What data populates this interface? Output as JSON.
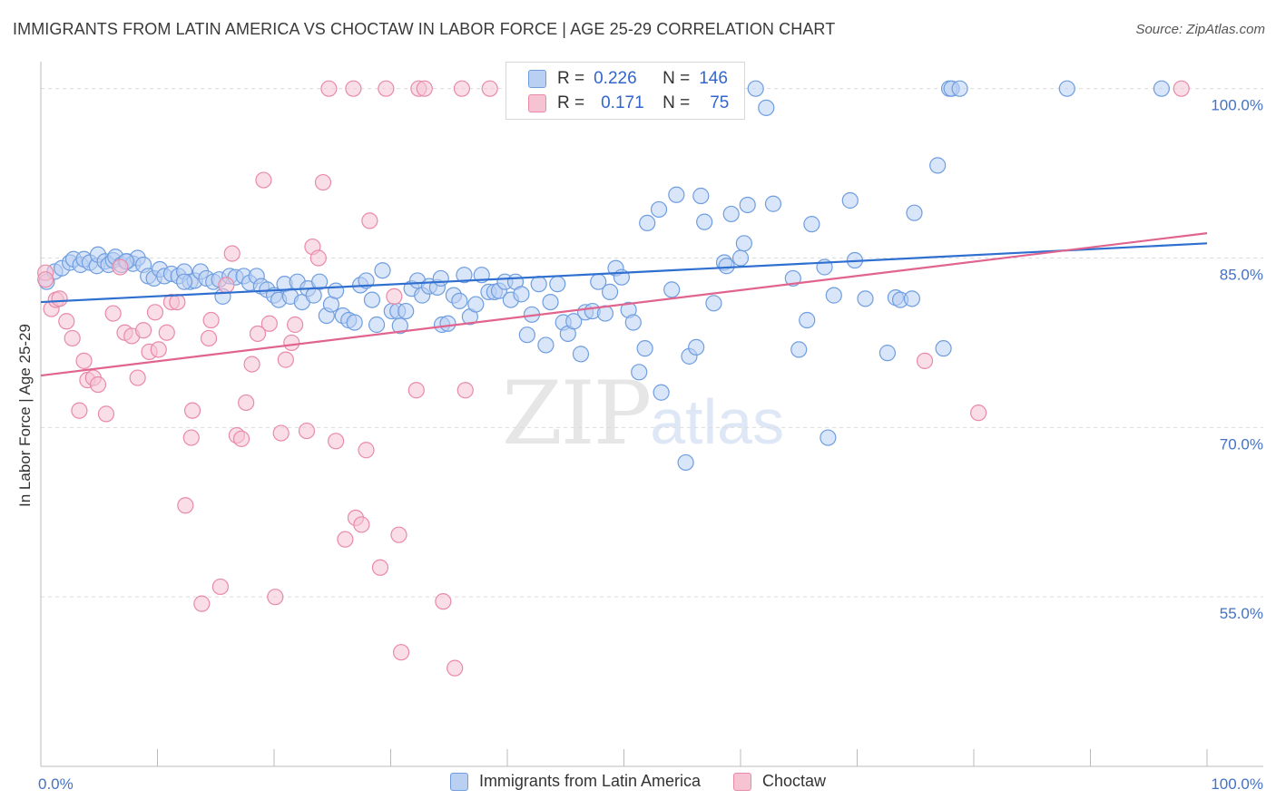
{
  "title": "IMMIGRANTS FROM LATIN AMERICA VS CHOCTAW IN LABOR FORCE | AGE 25-29 CORRELATION CHART",
  "source": "Source: ZipAtlas.com",
  "watermark": {
    "zip": "ZIP",
    "atlas": "atlas"
  },
  "legend_top": {
    "rows": [
      {
        "r_label": "R =",
        "r_value": "0.226",
        "n_label": "N =",
        "n_value": "146"
      },
      {
        "r_label": "R =",
        "r_value": "0.171",
        "n_label": "N =",
        "n_value": "75"
      }
    ]
  },
  "chart_data": {
    "type": "scatter",
    "title": "IMMIGRANTS FROM LATIN AMERICA VS CHOCTAW IN LABOR FORCE | AGE 25-29 CORRELATION CHART",
    "xlabel": "",
    "ylabel": "In Labor Force | Age 25-29",
    "xlim": [
      0,
      100
    ],
    "ylim": [
      40,
      101.5
    ],
    "x_tick_labels": [
      "0.0%",
      "100.0%"
    ],
    "y_ticks": [
      55,
      70,
      85,
      100
    ],
    "y_tick_labels": [
      "55.0%",
      "70.0%",
      "85.0%",
      "100.0%"
    ],
    "grid": true,
    "legend_position": "bottom",
    "series": [
      {
        "name": "Immigrants from Latin America",
        "color": "#6f9ee0",
        "fill": "#b9d0f2",
        "R": 0.226,
        "N": 146,
        "trend": {
          "x": [
            0,
            100
          ],
          "y": [
            81.1,
            86.3
          ]
        },
        "points": [
          [
            0.5,
            82.9
          ],
          [
            1.2,
            83.8
          ],
          [
            1.8,
            84.1
          ],
          [
            2.5,
            84.6
          ],
          [
            2.8,
            84.9
          ],
          [
            3.4,
            84.4
          ],
          [
            3.7,
            84.9
          ],
          [
            4.2,
            84.6
          ],
          [
            4.8,
            84.3
          ],
          [
            4.9,
            85.3
          ],
          [
            5.5,
            84.7
          ],
          [
            5.8,
            84.4
          ],
          [
            6.2,
            84.8
          ],
          [
            6.4,
            85.1
          ],
          [
            6.9,
            84.4
          ],
          [
            7.4,
            84.7
          ],
          [
            7.9,
            84.5
          ],
          [
            8.3,
            85.0
          ],
          [
            8.8,
            84.4
          ],
          [
            9.2,
            83.4
          ],
          [
            9.7,
            83.2
          ],
          [
            10.2,
            84.0
          ],
          [
            10.6,
            83.4
          ],
          [
            11.2,
            83.6
          ],
          [
            11.8,
            83.4
          ],
          [
            12.3,
            83.8
          ],
          [
            12.8,
            82.9
          ],
          [
            13.2,
            83.0
          ],
          [
            13.7,
            83.8
          ],
          [
            14.2,
            83.2
          ],
          [
            14.8,
            82.9
          ],
          [
            15.3,
            83.1
          ],
          [
            15.6,
            81.6
          ],
          [
            16.2,
            83.4
          ],
          [
            16.7,
            83.3
          ],
          [
            17.4,
            83.4
          ],
          [
            17.9,
            82.8
          ],
          [
            18.5,
            83.4
          ],
          [
            18.9,
            82.5
          ],
          [
            19.4,
            82.2
          ],
          [
            20.0,
            81.7
          ],
          [
            20.4,
            81.3
          ],
          [
            20.9,
            82.7
          ],
          [
            21.4,
            81.6
          ],
          [
            22.0,
            82.9
          ],
          [
            22.4,
            81.1
          ],
          [
            22.9,
            82.3
          ],
          [
            23.4,
            81.7
          ],
          [
            23.9,
            82.9
          ],
          [
            24.5,
            79.9
          ],
          [
            24.9,
            80.9
          ],
          [
            25.3,
            82.1
          ],
          [
            25.9,
            79.9
          ],
          [
            26.4,
            79.5
          ],
          [
            26.9,
            79.3
          ],
          [
            27.4,
            82.6
          ],
          [
            27.9,
            83.0
          ],
          [
            28.4,
            81.3
          ],
          [
            28.8,
            79.1
          ],
          [
            29.3,
            83.9
          ],
          [
            30.1,
            80.3
          ],
          [
            30.6,
            80.3
          ],
          [
            30.8,
            79.0
          ],
          [
            31.3,
            80.3
          ],
          [
            31.8,
            82.3
          ],
          [
            32.3,
            83.0
          ],
          [
            32.7,
            81.7
          ],
          [
            33.3,
            82.5
          ],
          [
            34.0,
            82.4
          ],
          [
            34.4,
            79.1
          ],
          [
            34.9,
            79.2
          ],
          [
            35.4,
            81.7
          ],
          [
            35.9,
            81.2
          ],
          [
            36.3,
            83.5
          ],
          [
            36.8,
            79.8
          ],
          [
            37.3,
            80.9
          ],
          [
            37.8,
            83.5
          ],
          [
            38.4,
            82.0
          ],
          [
            38.9,
            82.0
          ],
          [
            39.3,
            82.1
          ],
          [
            39.8,
            82.9
          ],
          [
            40.3,
            81.3
          ],
          [
            40.7,
            82.9
          ],
          [
            41.2,
            81.8
          ],
          [
            41.7,
            78.2
          ],
          [
            42.1,
            80.0
          ],
          [
            42.7,
            82.7
          ],
          [
            43.3,
            77.3
          ],
          [
            43.7,
            81.1
          ],
          [
            44.3,
            82.7
          ],
          [
            44.8,
            79.3
          ],
          [
            45.2,
            78.3
          ],
          [
            45.7,
            79.4
          ],
          [
            46.3,
            76.5
          ],
          [
            46.7,
            80.2
          ],
          [
            47.3,
            80.3
          ],
          [
            47.8,
            82.9
          ],
          [
            48.4,
            80.1
          ],
          [
            48.8,
            82.0
          ],
          [
            49.3,
            84.1
          ],
          [
            49.8,
            83.3
          ],
          [
            50.4,
            80.4
          ],
          [
            50.8,
            79.3
          ],
          [
            51.3,
            74.9
          ],
          [
            51.8,
            77.0
          ],
          [
            52.0,
            88.1
          ],
          [
            53.0,
            89.3
          ],
          [
            53.2,
            73.1
          ],
          [
            54.1,
            82.2
          ],
          [
            54.5,
            90.6
          ],
          [
            55.3,
            66.9
          ],
          [
            55.6,
            76.3
          ],
          [
            56.2,
            77.1
          ],
          [
            56.6,
            90.5
          ],
          [
            56.9,
            88.2
          ],
          [
            57.7,
            81.0
          ],
          [
            58.6,
            84.6
          ],
          [
            58.8,
            84.3
          ],
          [
            59.2,
            88.9
          ],
          [
            60.0,
            85.0
          ],
          [
            60.3,
            86.3
          ],
          [
            60.6,
            89.7
          ],
          [
            61.3,
            100.0
          ],
          [
            62.2,
            98.3
          ],
          [
            62.8,
            89.8
          ],
          [
            64.5,
            83.2
          ],
          [
            65.0,
            76.9
          ],
          [
            65.7,
            79.5
          ],
          [
            66.1,
            88.0
          ],
          [
            67.2,
            84.2
          ],
          [
            67.5,
            69.1
          ],
          [
            68.0,
            81.7
          ],
          [
            69.4,
            90.1
          ],
          [
            69.8,
            84.8
          ],
          [
            70.7,
            81.4
          ],
          [
            72.6,
            76.6
          ],
          [
            73.3,
            81.5
          ],
          [
            73.7,
            81.3
          ],
          [
            74.7,
            81.4
          ],
          [
            74.9,
            89.0
          ],
          [
            76.9,
            93.2
          ],
          [
            77.4,
            77.0
          ],
          [
            77.9,
            100.0
          ],
          [
            78.1,
            100.0
          ],
          [
            78.8,
            100.0
          ],
          [
            88.0,
            100.0
          ],
          [
            96.1,
            100.0
          ],
          [
            34.3,
            83.2
          ],
          [
            12.3,
            82.9
          ],
          [
            7.3,
            84.7
          ]
        ]
      },
      {
        "name": "Choctaw",
        "color": "#e98aa8",
        "fill": "#f6c3d3",
        "R": 0.171,
        "N": 75,
        "trend": {
          "x": [
            0,
            100
          ],
          "y": [
            74.6,
            87.2
          ]
        },
        "points": [
          [
            0.4,
            83.7
          ],
          [
            0.9,
            80.5
          ],
          [
            1.3,
            81.3
          ],
          [
            1.6,
            81.4
          ],
          [
            2.2,
            79.4
          ],
          [
            2.7,
            77.9
          ],
          [
            3.3,
            71.5
          ],
          [
            3.7,
            75.9
          ],
          [
            4.0,
            74.2
          ],
          [
            4.5,
            74.4
          ],
          [
            4.9,
            73.8
          ],
          [
            5.6,
            71.2
          ],
          [
            6.2,
            80.1
          ],
          [
            6.8,
            84.2
          ],
          [
            7.2,
            78.4
          ],
          [
            7.8,
            78.1
          ],
          [
            8.3,
            74.4
          ],
          [
            8.8,
            78.6
          ],
          [
            9.3,
            76.7
          ],
          [
            9.8,
            80.2
          ],
          [
            10.1,
            76.9
          ],
          [
            10.8,
            78.4
          ],
          [
            11.2,
            81.1
          ],
          [
            11.7,
            81.1
          ],
          [
            12.4,
            63.1
          ],
          [
            12.9,
            69.1
          ],
          [
            13.0,
            71.5
          ],
          [
            13.8,
            54.4
          ],
          [
            14.4,
            77.9
          ],
          [
            14.6,
            79.5
          ],
          [
            15.4,
            55.9
          ],
          [
            15.9,
            82.6
          ],
          [
            16.4,
            85.4
          ],
          [
            16.8,
            69.3
          ],
          [
            17.2,
            69.0
          ],
          [
            17.6,
            72.2
          ],
          [
            18.1,
            75.6
          ],
          [
            18.6,
            78.3
          ],
          [
            19.1,
            91.9
          ],
          [
            19.6,
            79.2
          ],
          [
            20.1,
            55.0
          ],
          [
            20.6,
            69.5
          ],
          [
            21.0,
            76.0
          ],
          [
            21.5,
            77.5
          ],
          [
            21.8,
            79.1
          ],
          [
            22.8,
            69.7
          ],
          [
            23.3,
            86.0
          ],
          [
            23.8,
            85.0
          ],
          [
            24.2,
            91.7
          ],
          [
            24.7,
            100.0
          ],
          [
            25.3,
            68.8
          ],
          [
            26.1,
            60.1
          ],
          [
            26.8,
            100.0
          ],
          [
            27.0,
            62.0
          ],
          [
            27.5,
            61.4
          ],
          [
            27.9,
            68.0
          ],
          [
            28.2,
            88.3
          ],
          [
            29.1,
            57.6
          ],
          [
            29.6,
            100.0
          ],
          [
            30.3,
            81.6
          ],
          [
            30.7,
            60.5
          ],
          [
            30.9,
            50.1
          ],
          [
            32.2,
            73.3
          ],
          [
            32.4,
            100.0
          ],
          [
            32.9,
            100.0
          ],
          [
            34.5,
            54.6
          ],
          [
            35.5,
            48.7
          ],
          [
            36.1,
            100.0
          ],
          [
            36.4,
            73.3
          ],
          [
            38.5,
            100.0
          ],
          [
            51.3,
            100.0
          ],
          [
            75.8,
            75.9
          ],
          [
            80.4,
            71.3
          ],
          [
            97.8,
            100.0
          ],
          [
            0.4,
            83.1
          ]
        ]
      }
    ]
  }
}
